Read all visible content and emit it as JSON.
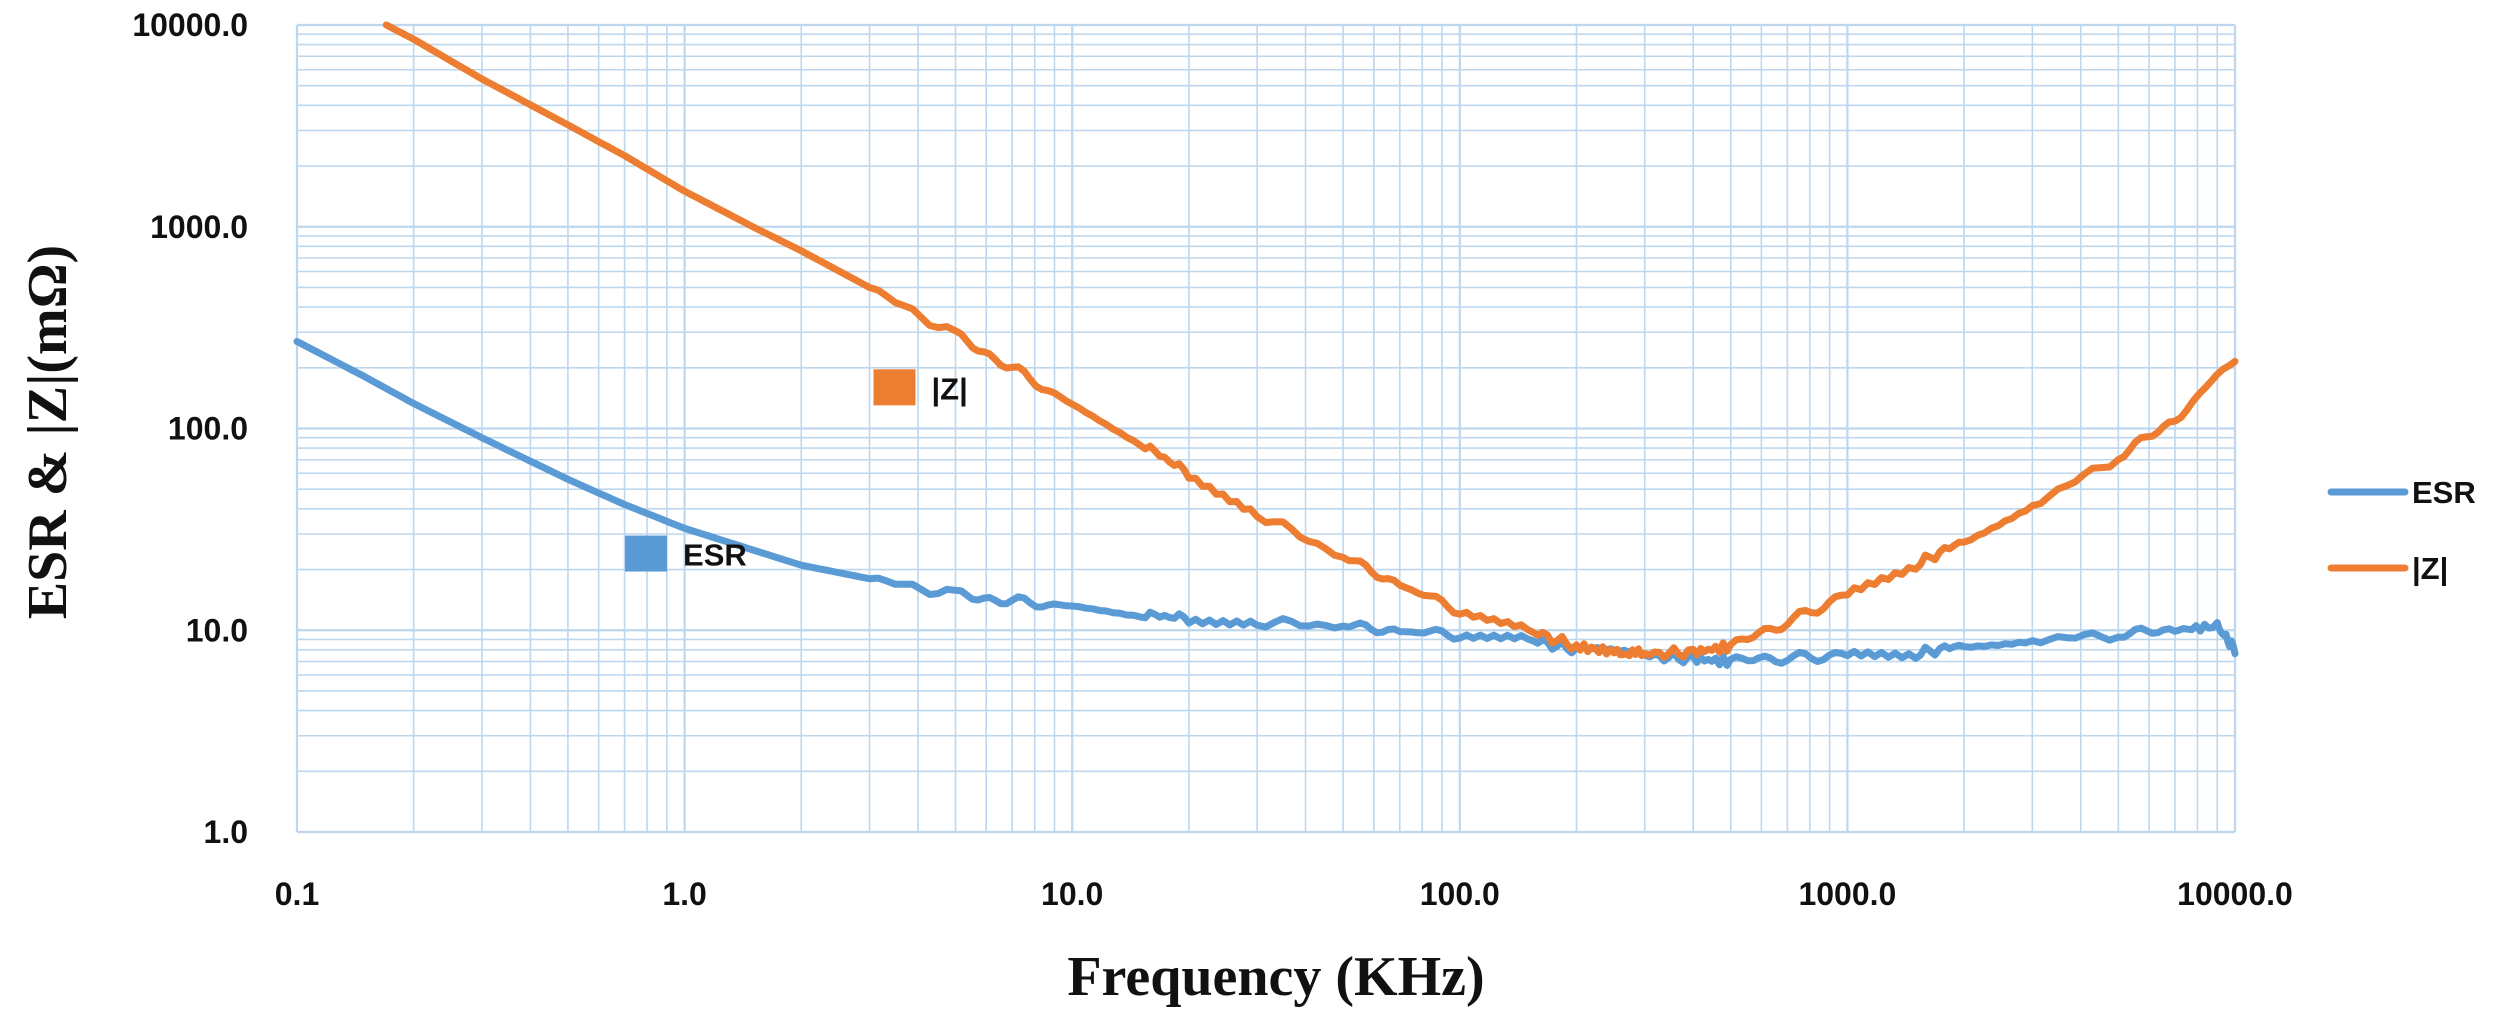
{
  "chart_data": {
    "type": "line",
    "xlabel": "Frequency (KHz)",
    "ylabel": "ESR & |Z|(mΩ)",
    "x_scale": "log",
    "y_scale": "log",
    "xlim": [
      0.1,
      10000
    ],
    "ylim": [
      1,
      10000
    ],
    "x_ticks": [
      "0.1",
      "1.0",
      "10.0",
      "100.0",
      "1000.0",
      "10000.0"
    ],
    "y_ticks": [
      "1.0",
      "10.0",
      "100.0",
      "1000.0",
      "10000.0"
    ],
    "grid": true,
    "legend_position": "right",
    "series": [
      {
        "name": "ESR",
        "color": "#5B9BD5",
        "points": [
          [
            0.1,
            270
          ],
          [
            0.15,
            180
          ],
          [
            0.2,
            133
          ],
          [
            0.3,
            90
          ],
          [
            0.5,
            56
          ],
          [
            0.7,
            42
          ],
          [
            1,
            32
          ],
          [
            1.5,
            25
          ],
          [
            2,
            21
          ],
          [
            3,
            18
          ],
          [
            5,
            15
          ],
          [
            7,
            14
          ],
          [
            10,
            13
          ],
          [
            15,
            12
          ],
          [
            20,
            11.5
          ],
          [
            30,
            11
          ],
          [
            50,
            10.5
          ],
          [
            70,
            10
          ],
          [
            100,
            9.5
          ],
          [
            150,
            9
          ],
          [
            200,
            8
          ],
          [
            300,
            7.5
          ],
          [
            400,
            7.2
          ],
          [
            500,
            7
          ],
          [
            700,
            7.3
          ],
          [
            1000,
            7.5
          ],
          [
            1500,
            7.6
          ],
          [
            2000,
            8.5
          ],
          [
            3000,
            9
          ],
          [
            5000,
            9.5
          ],
          [
            7000,
            10
          ],
          [
            9000,
            10.5
          ],
          [
            10000,
            8
          ]
        ]
      },
      {
        "name": "|Z|",
        "color": "#ED7D31",
        "points": [
          [
            0.17,
            10000
          ],
          [
            0.2,
            8500
          ],
          [
            0.3,
            5400
          ],
          [
            0.5,
            3200
          ],
          [
            0.7,
            2250
          ],
          [
            1,
            1500
          ],
          [
            1.5,
            1000
          ],
          [
            2,
            760
          ],
          [
            3,
            500
          ],
          [
            5,
            290
          ],
          [
            7,
            200
          ],
          [
            10,
            130
          ],
          [
            15,
            85
          ],
          [
            20,
            60
          ],
          [
            30,
            38
          ],
          [
            50,
            23
          ],
          [
            70,
            17
          ],
          [
            100,
            12.5
          ],
          [
            150,
            10
          ],
          [
            200,
            8.3
          ],
          [
            250,
            7.8
          ],
          [
            300,
            7.6
          ],
          [
            400,
            7.8
          ],
          [
            500,
            8.3
          ],
          [
            700,
            11
          ],
          [
            1000,
            15
          ],
          [
            1500,
            21
          ],
          [
            2000,
            28
          ],
          [
            3000,
            42
          ],
          [
            5000,
            72
          ],
          [
            7000,
            110
          ],
          [
            10000,
            225
          ]
        ]
      }
    ],
    "labels": [
      {
        "series": "|Z|",
        "text": "|Z|"
      },
      {
        "series": "ESR",
        "text": "ESR"
      }
    ]
  }
}
